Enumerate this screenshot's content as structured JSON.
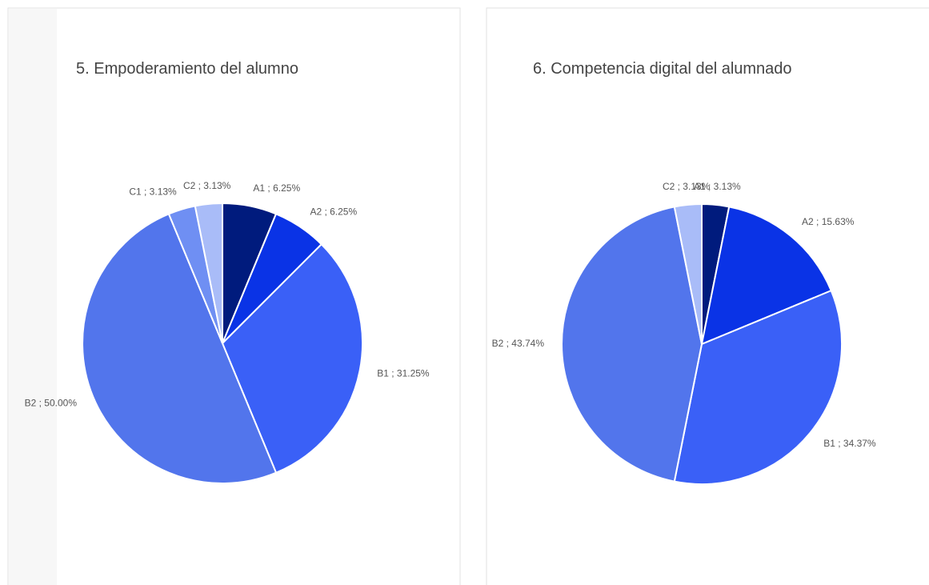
{
  "chart_data": [
    {
      "type": "pie",
      "title": "5. Empoderamiento del alumno",
      "values": [
        6.25,
        6.25,
        31.25,
        50.0,
        3.13,
        3.13
      ],
      "value_labels": [
        "A1 ; 6.25%",
        "A2 ; 6.25%",
        "B1 ; 31.25%",
        "B2 ; 50.00%",
        "C1 ; 3.13%",
        "C2 ; 3.13%"
      ],
      "colors": [
        "#001b7d",
        "#0a33e6",
        "#3a60f7",
        "#5275ec",
        "#6f8ff3",
        "#a9bcf8"
      ]
    },
    {
      "type": "pie",
      "title": "6. Competencia digital del alumnado",
      "values": [
        3.13,
        15.63,
        34.37,
        43.74,
        3.13
      ],
      "value_labels": [
        "A1 ; 3.13%",
        "A2 ; 15.63%",
        "B1 ; 34.37%",
        "B2 ; 43.74%",
        "C2 ; 3.13%"
      ],
      "colors": [
        "#001b7d",
        "#0a33e6",
        "#3a60f7",
        "#5275ec",
        "#a9bcf8"
      ]
    }
  ]
}
